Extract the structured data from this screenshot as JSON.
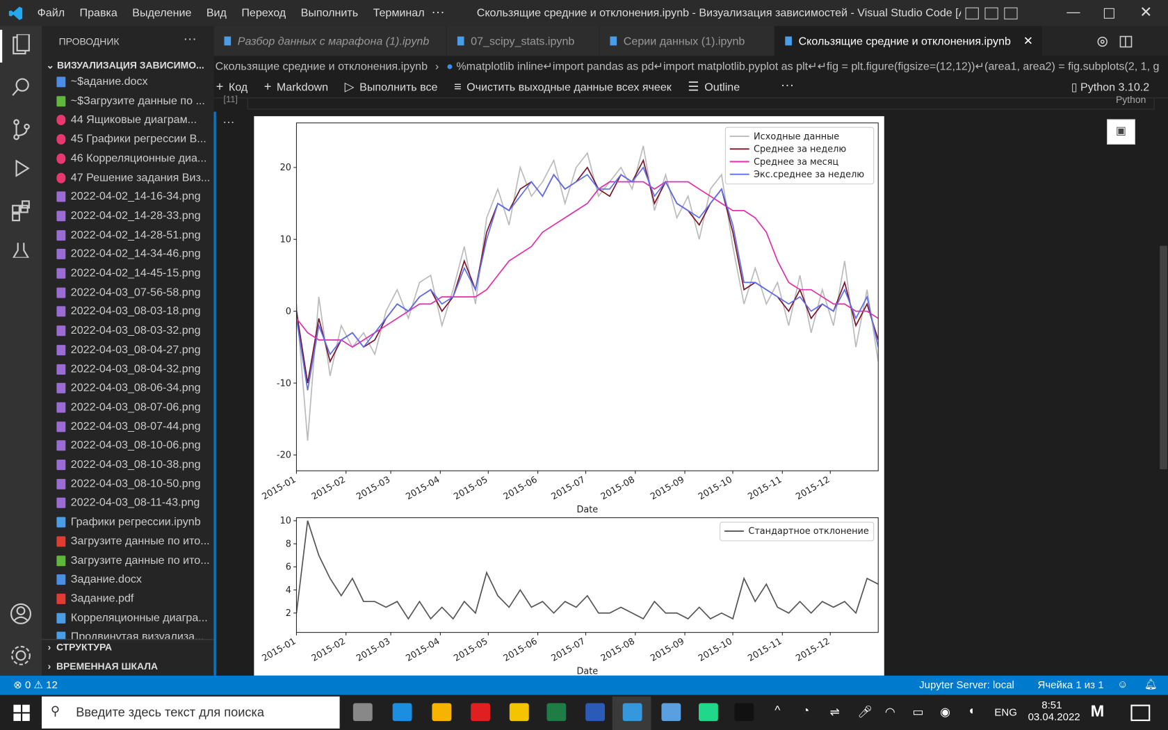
{
  "titlebar": {
    "menu": [
      "Файл",
      "Правка",
      "Выделение",
      "Вид",
      "Переход",
      "Выполнить",
      "Терминал"
    ],
    "title": "Скользящие средние и отклонения.ipynb - Визуализация зависимостей - Visual Studio Code [Админ..."
  },
  "sidebar": {
    "header": "ПРОВОДНИК",
    "folder": "ВИЗУАЛИЗАЦИЯ ЗАВИСИМО...",
    "files": [
      "~$адание.docx",
      "~$Загрузите данные по ...",
      "44 Ящиковые диаграм...",
      "45 Графики регрессии В...",
      "46 Корреляционные диа...",
      "47 Решение задания Виз...",
      "2022-04-02_14-16-34.png",
      "2022-04-02_14-28-33.png",
      "2022-04-02_14-28-51.png",
      "2022-04-02_14-34-46.png",
      "2022-04-02_14-45-15.png",
      "2022-04-03_07-56-58.png",
      "2022-04-03_08-03-18.png",
      "2022-04-03_08-03-32.png",
      "2022-04-03_08-04-27.png",
      "2022-04-03_08-04-32.png",
      "2022-04-03_08-06-34.png",
      "2022-04-03_08-07-06.png",
      "2022-04-03_08-07-44.png",
      "2022-04-03_08-10-06.png",
      "2022-04-03_08-10-38.png",
      "2022-04-03_08-10-50.png",
      "2022-04-03_08-11-43.png",
      "Графики регрессии.ipynb",
      "Загрузите данные по ито...",
      "Загрузите данные по ито...",
      "Задание.docx",
      "Задание.pdf",
      "Корреляционные диагра...",
      "Продвинутая визуализа..."
    ],
    "sections": [
      "СТРУКТУРА",
      "ВРЕМЕННАЯ ШКАЛА"
    ]
  },
  "tabs": [
    "Разбор данных с марафона (1).ipynb",
    "07_scipy_stats.ipynb",
    "Серии данных (1).ipynb",
    "Скользящие средние и отклонения.ipynb"
  ],
  "breadcrumb": [
    "Скользящие средние и отклонения.ipynb",
    "%matplotlib inline↵import pandas as pd↵import matplotlib.pyplot as plt↵↵fig = plt.figure(figsize=(12,12))↵(area1, area2) = fig.subplots(2, 1, g"
  ],
  "toolbar": [
    "Код",
    "Markdown",
    "Выполнить все",
    "Очистить выходные данные всех ячеек",
    "Outline"
  ],
  "kernel": "Python 3.10.2",
  "cell": {
    "count": "[11]",
    "language": "Python"
  },
  "statusbar": {
    "errors": 0,
    "warnings": 12,
    "server": "Jupyter Server: local",
    "cell": "Ячейка 1 из 1"
  },
  "taskbar": {
    "search": "Введите здесь текст для поиска",
    "lang": "ENG",
    "time": "8:51",
    "date": "03.04.2022"
  },
  "chart_data": [
    {
      "type": "line",
      "xlabel": "Date",
      "legend": "upper right",
      "x": [
        0,
        7,
        14,
        21,
        28,
        35,
        42,
        49,
        56,
        63,
        70,
        77,
        84,
        91,
        98,
        105,
        112,
        119,
        126,
        133,
        140,
        147,
        154,
        161,
        168,
        175,
        182,
        189,
        196,
        203,
        210,
        217,
        224,
        231,
        238,
        245,
        252,
        259,
        266,
        273,
        280,
        287,
        294,
        301,
        308,
        315,
        322,
        329,
        336,
        343,
        350,
        357,
        364
      ],
      "xlim": [
        0,
        364
      ],
      "xticks": [
        {
          "value": 0,
          "label": "2015-01"
        },
        {
          "value": 31,
          "label": "2015-02"
        },
        {
          "value": 59,
          "label": "2015-03"
        },
        {
          "value": 90,
          "label": "2015-04"
        },
        {
          "value": 120,
          "label": "2015-05"
        },
        {
          "value": 151,
          "label": "2015-06"
        },
        {
          "value": 181,
          "label": "2015-07"
        },
        {
          "value": 212,
          "label": "2015-08"
        },
        {
          "value": 243,
          "label": "2015-09"
        },
        {
          "value": 273,
          "label": "2015-10"
        },
        {
          "value": 304,
          "label": "2015-11"
        },
        {
          "value": 334,
          "label": "2015-12"
        }
      ],
      "ylim": [
        -22.2,
        26.2
      ],
      "yticks": [
        -20,
        -10,
        0,
        10,
        20
      ],
      "series": [
        {
          "name": "Исходные данные",
          "color": "#bbbbbb",
          "values": [
            1,
            -18,
            2,
            -9,
            -2,
            -5,
            -3,
            -6,
            0,
            3,
            -1,
            4,
            5,
            -2,
            3,
            9,
            1,
            13,
            17,
            12,
            20,
            16,
            18,
            21,
            15,
            20,
            22,
            16,
            18,
            20,
            17,
            23,
            14,
            19,
            13,
            16,
            10,
            17,
            19,
            9,
            1,
            6,
            1,
            4,
            -2,
            5,
            -3,
            3,
            -2,
            7,
            -5,
            3,
            -7
          ]
        },
        {
          "name": "Среднее за неделю",
          "color": "#7a1528",
          "values": [
            0,
            -10,
            -1,
            -7,
            -4,
            -3,
            -5,
            -4,
            -1,
            1,
            0,
            2,
            3,
            0,
            2,
            7,
            3,
            11,
            15,
            14,
            17,
            18,
            16,
            19,
            17,
            18,
            20,
            17,
            16,
            19,
            18,
            21,
            15,
            18,
            15,
            14,
            12,
            15,
            17,
            11,
            3,
            4,
            3,
            2,
            0,
            3,
            -1,
            1,
            0,
            4,
            -2,
            1,
            -4
          ]
        },
        {
          "name": "Среднее за месяц",
          "color": "#e22eaa",
          "values": [
            -1,
            -3,
            -4,
            -4,
            -4,
            -5,
            -4,
            -3,
            -2,
            -1,
            0,
            1,
            1,
            2,
            2,
            2,
            2,
            3,
            5,
            7,
            8,
            9,
            11,
            12,
            13,
            14,
            15,
            17,
            18,
            18,
            18,
            18,
            17,
            18,
            18,
            18,
            17,
            16,
            15,
            14,
            14,
            13,
            11,
            7,
            4,
            3,
            3,
            2,
            1,
            1,
            0,
            0,
            -1
          ]
        },
        {
          "name": "Экс.среднее за неделю",
          "color": "#5b6ff0",
          "values": [
            -1,
            -11,
            -2,
            -6,
            -4,
            -3,
            -5,
            -3,
            -1,
            1,
            0,
            2,
            3,
            1,
            2,
            6,
            3,
            10,
            15,
            14,
            16,
            18,
            16,
            19,
            17,
            18,
            19,
            17,
            17,
            19,
            18,
            20,
            16,
            18,
            15,
            14,
            13,
            15,
            17,
            12,
            4,
            4,
            3,
            2,
            1,
            2,
            0,
            1,
            0,
            3,
            -1,
            2,
            -5
          ]
        }
      ]
    },
    {
      "type": "line",
      "xlabel": "Date",
      "legend": "upper right",
      "x": [
        0,
        7,
        14,
        21,
        28,
        35,
        42,
        49,
        56,
        63,
        70,
        77,
        84,
        91,
        98,
        105,
        112,
        119,
        126,
        133,
        140,
        147,
        154,
        161,
        168,
        175,
        182,
        189,
        196,
        203,
        210,
        217,
        224,
        231,
        238,
        245,
        252,
        259,
        266,
        273,
        280,
        287,
        294,
        301,
        308,
        315,
        322,
        329,
        336,
        343,
        350,
        357,
        364
      ],
      "xlim": [
        0,
        364
      ],
      "xticks": [
        {
          "value": 0,
          "label": "2015-01"
        },
        {
          "value": 31,
          "label": "2015-02"
        },
        {
          "value": 59,
          "label": "2015-03"
        },
        {
          "value": 90,
          "label": "2015-04"
        },
        {
          "value": 120,
          "label": "2015-05"
        },
        {
          "value": 151,
          "label": "2015-06"
        },
        {
          "value": 181,
          "label": "2015-07"
        },
        {
          "value": 212,
          "label": "2015-08"
        },
        {
          "value": 243,
          "label": "2015-09"
        },
        {
          "value": 273,
          "label": "2015-10"
        },
        {
          "value": 304,
          "label": "2015-11"
        },
        {
          "value": 334,
          "label": "2015-12"
        }
      ],
      "ylim": [
        0.32,
        10.26
      ],
      "yticks": [
        2,
        4,
        6,
        8,
        10
      ],
      "series": [
        {
          "name": "Стандартное отклонение",
          "color": "#555555",
          "values": [
            2,
            10,
            7,
            5,
            3.5,
            5,
            3,
            3,
            2.5,
            3,
            1.5,
            3,
            1.5,
            2.5,
            1.5,
            3,
            2,
            5.5,
            3.5,
            2.5,
            4,
            2.5,
            3,
            2,
            3,
            2.5,
            3.5,
            2,
            2,
            2.5,
            2,
            1.5,
            3,
            2,
            2,
            1.5,
            2.5,
            1.5,
            2,
            1.5,
            5,
            3,
            4.5,
            2.5,
            2,
            3,
            2,
            3,
            2.5,
            3,
            2,
            5,
            4.5
          ]
        }
      ]
    }
  ]
}
